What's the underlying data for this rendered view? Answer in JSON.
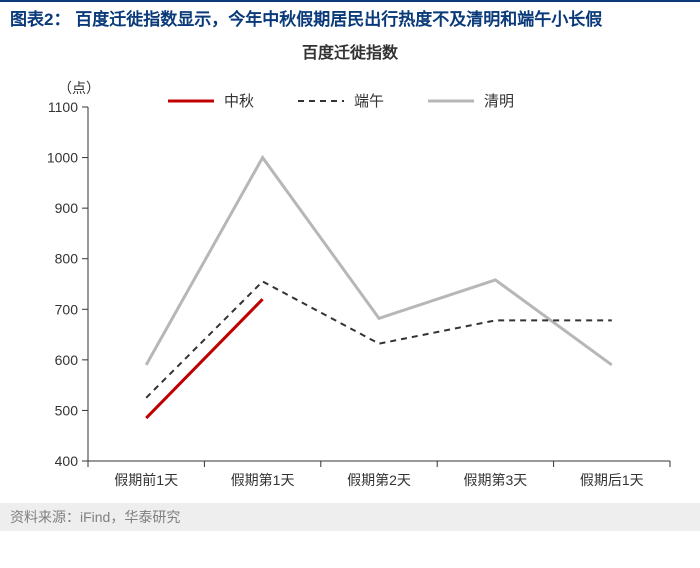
{
  "header": {
    "rule_color": "#0a3a7a",
    "title_prefix": "图表2：",
    "title_text": "百度迁徙指数显示，今年中秋假期居民出行热度不及清明和端午小长假",
    "title_color": "#0a3a7a"
  },
  "chart": {
    "type": "line",
    "title": "百度迁徙指数",
    "unit_label": "（点）",
    "background_color": "#ffffff",
    "axis_color": "#333333",
    "grid_color": "#ffffff",
    "categories": [
      "假期前1天",
      "假期第1天",
      "假期第2天",
      "假期第3天",
      "假期后1天"
    ],
    "ylim": [
      400,
      1100
    ],
    "ytick_step": 100,
    "yticks": [
      400,
      500,
      600,
      700,
      800,
      900,
      1000,
      1100
    ],
    "series": [
      {
        "name": "中秋",
        "color": "#c00000",
        "dash": "none",
        "width": 3,
        "values": [
          485,
          720,
          null,
          null,
          null
        ]
      },
      {
        "name": "端午",
        "color": "#333333",
        "dash": "6,5",
        "width": 2,
        "values": [
          525,
          755,
          632,
          678,
          678
        ]
      },
      {
        "name": "清明",
        "color": "#b7b7b7",
        "dash": "none",
        "width": 3,
        "values": [
          590,
          1000,
          682,
          758,
          590
        ]
      }
    ],
    "legend": {
      "y": 0,
      "gap": 130
    },
    "label_fontsize": 14
  },
  "source": {
    "text": "资料来源：iFind，华泰研究",
    "bg": "#eeeeee",
    "color": "#808080"
  }
}
